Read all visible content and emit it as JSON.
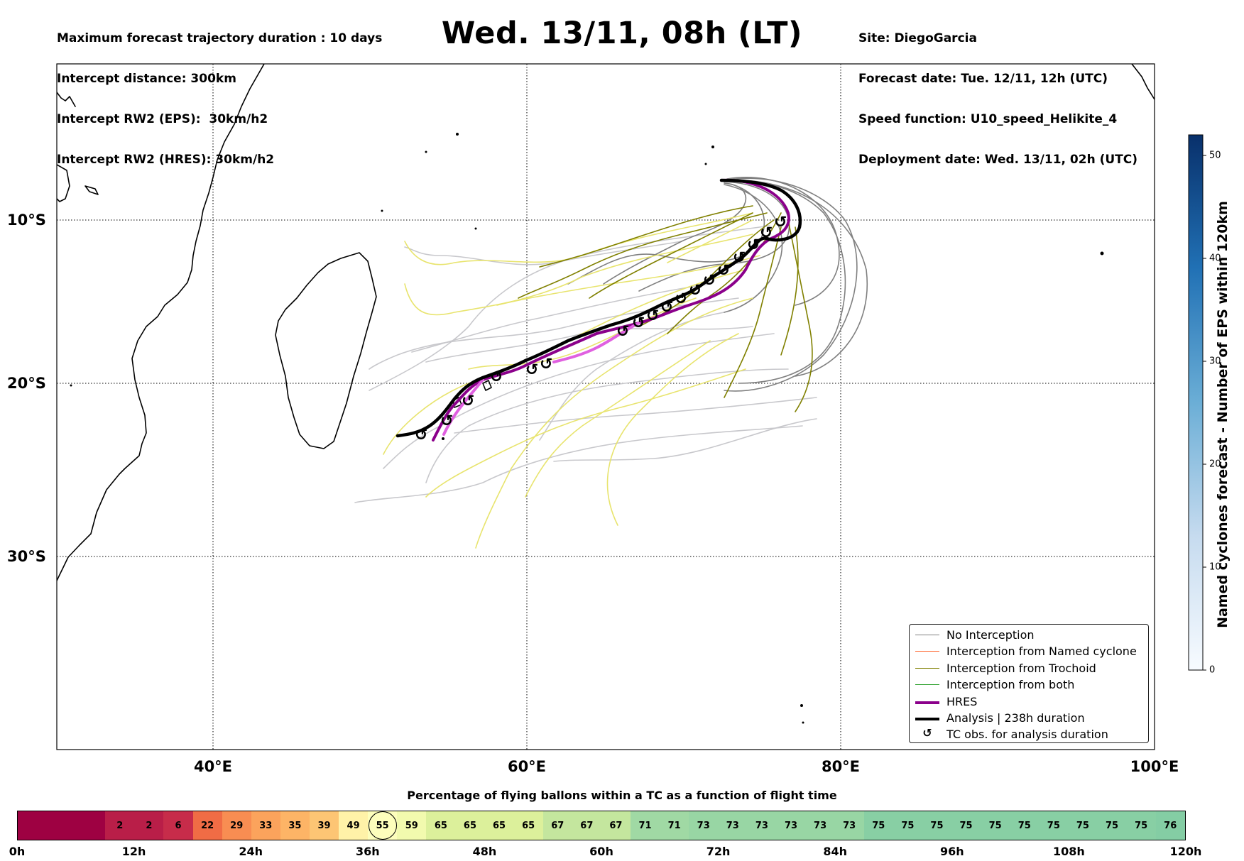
{
  "header_left": [
    "Maximum forecast trajectory duration : 10 days",
    "Intercept distance: 300km",
    "Intercept RW2 (EPS):  30km/h2",
    "Intercept RW2 (HRES): 30km/h2"
  ],
  "title": "Wed. 13/11, 08h (LT)",
  "header_right": [
    "Site: DiegoGarcia",
    "Forecast date: Tue. 12/11, 12h (UTC)",
    "Speed function: U10_speed_Helikite_4",
    "Deployment date: Wed. 13/11, 02h (UTC)"
  ],
  "map": {
    "lon_range": [
      30,
      100
    ],
    "lat_range": [
      -42,
      0
    ],
    "lat_labels": [
      "10°S",
      "20°S",
      "30°S"
    ],
    "lon_labels": [
      "40°E",
      "60°E",
      "80°E",
      "100°E"
    ],
    "grid": "dotted"
  },
  "colorbar": {
    "label": "Named cyclones forecast - Number of EPS within 120km",
    "ticks": [
      "0",
      "10",
      "20",
      "30",
      "40",
      "50"
    ],
    "range": [
      0,
      52
    ],
    "colors": [
      "#f7fbff",
      "#08306b"
    ]
  },
  "legend": [
    {
      "label": "No Interception",
      "color": "#808080",
      "kind": "line"
    },
    {
      "label": "Interception from Named cyclone",
      "color": "#ff6a33",
      "kind": "line"
    },
    {
      "label": "Interception from Trochoid",
      "color": "#808000",
      "kind": "line"
    },
    {
      "label": "Interception from both",
      "color": "#2ca02c",
      "kind": "line"
    },
    {
      "label": "HRES",
      "color": "#8b008b",
      "kind": "thick"
    },
    {
      "label": "Analysis | 238h duration",
      "color": "#000000",
      "kind": "thick"
    },
    {
      "label": "TC obs. for analysis duration",
      "color": "#000000",
      "kind": "symbol",
      "symbol": "↺"
    }
  ],
  "percentage_bar": {
    "title": "Percentage of flying ballons within a TC as a function of flight time",
    "values": [
      "",
      "",
      "",
      "2",
      "2",
      "6",
      "22",
      "29",
      "33",
      "35",
      "39",
      "49",
      "55",
      "59",
      "65",
      "65",
      "65",
      "65",
      "67",
      "67",
      "67",
      "71",
      "71",
      "73",
      "73",
      "73",
      "73",
      "73",
      "73",
      "75",
      "75",
      "75",
      "75",
      "75",
      "75",
      "75",
      "75",
      "75",
      "75",
      "76"
    ],
    "colors": [
      "#9e0142",
      "#9e0142",
      "#9e0142",
      "#b91e48",
      "#b91e48",
      "#c72c4a",
      "#f06c45",
      "#f88d52",
      "#fba35c",
      "#fdb466",
      "#fdc574",
      "#fff2a8",
      "#fdfebc",
      "#f2faae",
      "#dcf09b",
      "#dcf09b",
      "#dcf09b",
      "#dcf09b",
      "#c4e69e",
      "#c4e69e",
      "#c4e69e",
      "#a0d9a4",
      "#a0d9a4",
      "#98d6a4",
      "#98d6a4",
      "#98d6a4",
      "#98d6a4",
      "#98d6a4",
      "#98d6a4",
      "#88cfa4",
      "#88cfa4",
      "#88cfa4",
      "#88cfa4",
      "#88cfa4",
      "#88cfa4",
      "#88cfa4",
      "#88cfa4",
      "#88cfa4",
      "#88cfa4",
      "#84cda4"
    ],
    "circled_value": "55",
    "hour_labels": [
      "0h",
      "12h",
      "24h",
      "36h",
      "48h",
      "60h",
      "72h",
      "84h",
      "96h",
      "108h",
      "120h"
    ]
  }
}
